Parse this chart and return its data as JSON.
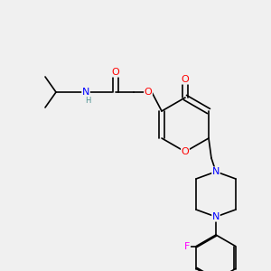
{
  "bg_color": "#f0f0f0",
  "atom_colors": {
    "O": "#ff0000",
    "N": "#0000ff",
    "F": "#ff00ff",
    "C": "#000000",
    "H": "#4a9090"
  },
  "bond_color": "#000000",
  "font_size": 7,
  "bond_width": 1.2
}
